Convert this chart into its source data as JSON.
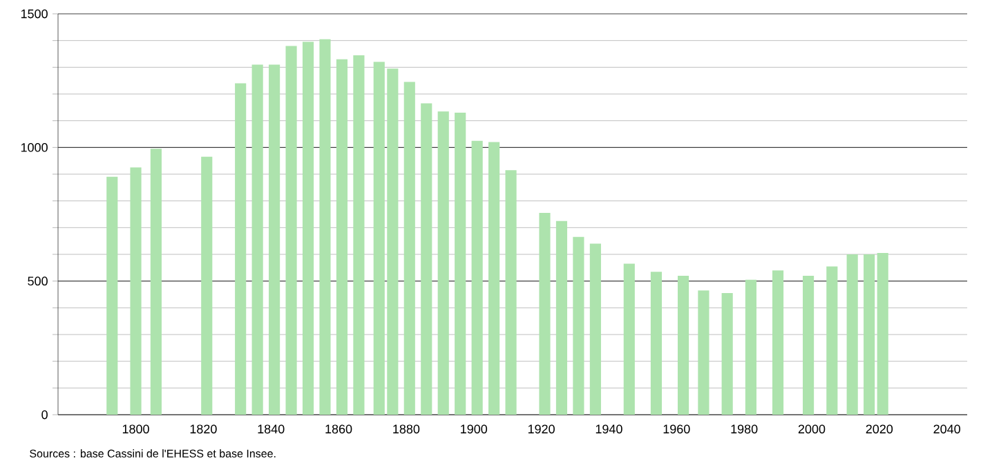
{
  "chart_data": {
    "type": "bar",
    "color": "#ade3ad",
    "x": [
      1793,
      1800,
      1806,
      1821,
      1831,
      1836,
      1841,
      1846,
      1851,
      1856,
      1861,
      1866,
      1872,
      1876,
      1881,
      1886,
      1891,
      1896,
      1901,
      1906,
      1911,
      1921,
      1926,
      1931,
      1936,
      1946,
      1954,
      1962,
      1968,
      1975,
      1982,
      1990,
      1999,
      2006,
      2012,
      2017,
      2021
    ],
    "values": [
      890,
      925,
      995,
      965,
      1240,
      1310,
      1310,
      1380,
      1395,
      1405,
      1330,
      1345,
      1320,
      1295,
      1245,
      1165,
      1135,
      1130,
      1025,
      1020,
      915,
      755,
      725,
      665,
      640,
      565,
      535,
      520,
      465,
      455,
      505,
      540,
      520,
      555,
      600,
      600,
      605
    ],
    "xlim": [
      1777,
      2046
    ],
    "xticks": [
      1800,
      1820,
      1840,
      1860,
      1880,
      1900,
      1920,
      1940,
      1960,
      1980,
      2000,
      2020,
      2040
    ],
    "ylim": [
      0,
      1500
    ],
    "yticks": [
      0,
      500,
      1000,
      1500
    ],
    "grid": "y",
    "annotations": [
      "Sources : base Cassini de l'EHESS et base Insee."
    ]
  }
}
